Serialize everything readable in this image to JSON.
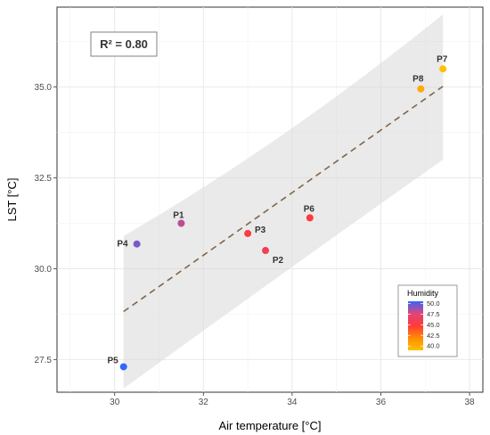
{
  "chart_data": {
    "type": "scatter",
    "xlabel": "Air temperature [°C]",
    "ylabel": "LST [°C]",
    "xlim": [
      28.7,
      38.3
    ],
    "ylim": [
      26.6,
      37.2
    ],
    "x_ticks": [
      30,
      32,
      34,
      36,
      38
    ],
    "x_tick_labels": [
      "30",
      "32",
      "34",
      "36",
      "38"
    ],
    "y_ticks": [
      27.5,
      30.0,
      32.5,
      35.0
    ],
    "y_tick_labels": [
      "27.5",
      "30.0",
      "32.5",
      "35.0"
    ],
    "grid": true,
    "annotation": "R² = 0.80",
    "points": [
      {
        "label": "P1",
        "x": 31.5,
        "y": 31.25,
        "humidity": 48.0
      },
      {
        "label": "P2",
        "x": 33.4,
        "y": 30.5,
        "humidity": 46.0
      },
      {
        "label": "P3",
        "x": 33.0,
        "y": 30.97,
        "humidity": 45.5
      },
      {
        "label": "P4",
        "x": 30.5,
        "y": 30.68,
        "humidity": 49.0
      },
      {
        "label": "P5",
        "x": 30.2,
        "y": 27.3,
        "humidity": 50.0
      },
      {
        "label": "P6",
        "x": 34.4,
        "y": 31.4,
        "humidity": 45.0
      },
      {
        "label": "P7",
        "x": 37.4,
        "y": 35.5,
        "humidity": 40.0
      },
      {
        "label": "P8",
        "x": 36.9,
        "y": 34.95,
        "humidity": 41.0
      }
    ],
    "regression": {
      "x": [
        30.2,
        37.4
      ],
      "y": [
        28.82,
        35.02
      ],
      "color": "#7f6647",
      "ci_upper": [
        30.9,
        37.0
      ],
      "ci_lower": [
        26.7,
        33.0
      ]
    },
    "legend": {
      "title": "Humidity",
      "placement": "bottom-right",
      "ticks": [
        "50.0",
        "47.5",
        "45.0",
        "42.5",
        "40.0"
      ],
      "tick_values": [
        50.0,
        47.5,
        45.0,
        42.5,
        40.0
      ],
      "range": [
        39.0,
        50.5
      ],
      "gradient": [
        "#1e90ff",
        "#e6194b",
        "#ff3333",
        "#ff9f00",
        "#ffbf00"
      ]
    }
  }
}
